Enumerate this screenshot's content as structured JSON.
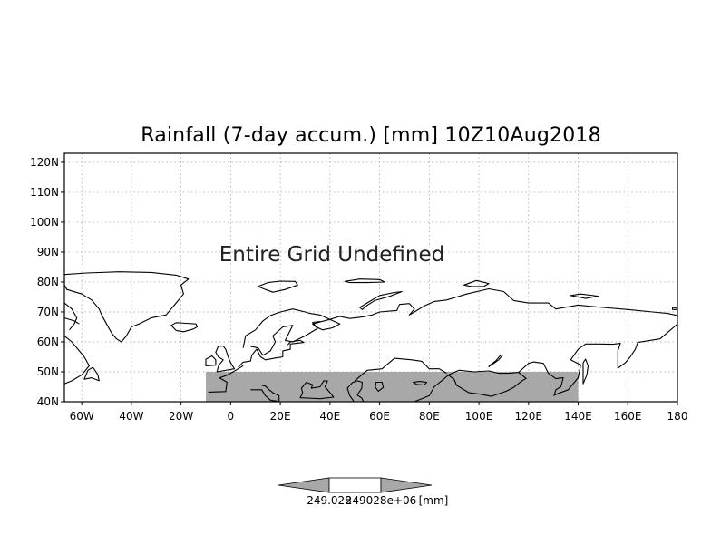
{
  "map": {
    "title": "Rainfall (7-day accum.) [mm] 10Z10Aug2018",
    "overlay_message": "Entire Grid Undefined",
    "lon_ticks": [
      {
        "lon": -60,
        "label": "60W"
      },
      {
        "lon": -40,
        "label": "40W"
      },
      {
        "lon": -20,
        "label": "20W"
      },
      {
        "lon": 0,
        "label": "0"
      },
      {
        "lon": 20,
        "label": "20E"
      },
      {
        "lon": 40,
        "label": "40E"
      },
      {
        "lon": 60,
        "label": "60E"
      },
      {
        "lon": 80,
        "label": "80E"
      },
      {
        "lon": 100,
        "label": "100E"
      },
      {
        "lon": 120,
        "label": "120E"
      },
      {
        "lon": 140,
        "label": "140E"
      },
      {
        "lon": 160,
        "label": "160E"
      },
      {
        "lon": 180,
        "label": "180"
      }
    ],
    "lat_ticks": [
      {
        "lat": 40,
        "label": "40N"
      },
      {
        "lat": 50,
        "label": "50N"
      },
      {
        "lat": 60,
        "label": "60N"
      },
      {
        "lat": 70,
        "label": "70N"
      },
      {
        "lat": 80,
        "label": "80N"
      },
      {
        "lat": 90,
        "label": "90N"
      },
      {
        "lat": 100,
        "label": "100N"
      },
      {
        "lat": 110,
        "label": "110N"
      },
      {
        "lat": 120,
        "label": "120N"
      }
    ],
    "lon_range": [
      -67,
      180
    ],
    "lat_range": [
      40,
      123
    ],
    "grid_lines": "dotted",
    "shaded_region": {
      "lon_range": [
        -10,
        140
      ],
      "lat_range": [
        40,
        50
      ],
      "color": "#a8a8a8"
    },
    "colorbar": {
      "min_label": "249.028",
      "max_label": "249028e+06",
      "units": "[mm]",
      "segments": [
        "#a8a8a8",
        "#ffffff",
        "#a8a8a8"
      ]
    }
  }
}
